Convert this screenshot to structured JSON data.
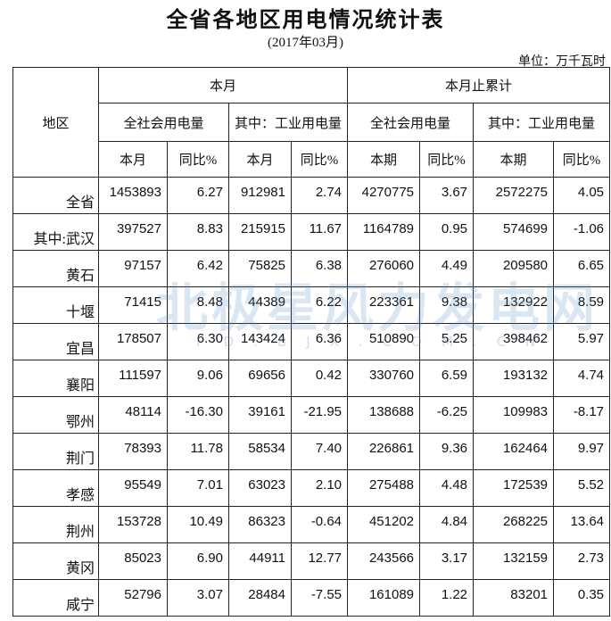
{
  "header": {
    "title": "全省各地区用电情况统计表",
    "subtitle": "(2017年03月)",
    "unit": "单位：万千瓦时"
  },
  "table": {
    "region_header": "地区",
    "groups": [
      "本月",
      "本月止累计"
    ],
    "subgroups": [
      "全社会用电量",
      "其中：工业用电量",
      "全社会用电量",
      "其中：工业用电量"
    ],
    "leaves": [
      "本月",
      "同比%",
      "本月",
      "同比%",
      "本期",
      "同比%",
      "本期",
      "同比%"
    ],
    "rows": [
      [
        "全省",
        "1453893",
        "6.27",
        "912981",
        "2.74",
        "4270775",
        "3.67",
        "2572275",
        "4.05"
      ],
      [
        "其中:武汉",
        "397527",
        "8.83",
        "215915",
        "11.67",
        "1164789",
        "0.95",
        "574699",
        "-1.06"
      ],
      [
        "黄石",
        "97157",
        "6.42",
        "75825",
        "6.38",
        "276060",
        "4.49",
        "209580",
        "6.65"
      ],
      [
        "十堰",
        "71415",
        "8.48",
        "44389",
        "6.22",
        "223361",
        "9.38",
        "132922",
        "8.59"
      ],
      [
        "宜昌",
        "178507",
        "6.30",
        "143424",
        "6.36",
        "510890",
        "5.25",
        "398462",
        "5.97"
      ],
      [
        "襄阳",
        "111597",
        "9.06",
        "69656",
        "0.42",
        "330760",
        "6.59",
        "193132",
        "4.74"
      ],
      [
        "鄂州",
        "48114",
        "-16.30",
        "39161",
        "-21.95",
        "138688",
        "-6.25",
        "109983",
        "-8.17"
      ],
      [
        "荆门",
        "78393",
        "11.78",
        "58534",
        "7.40",
        "226861",
        "9.36",
        "162464",
        "9.97"
      ],
      [
        "孝感",
        "95549",
        "7.01",
        "63023",
        "2.10",
        "275488",
        "4.48",
        "172539",
        "5.52"
      ],
      [
        "荆州",
        "153728",
        "10.49",
        "86323",
        "-0.64",
        "451202",
        "4.84",
        "268225",
        "13.64"
      ],
      [
        "黄冈",
        "85023",
        "6.90",
        "44911",
        "12.77",
        "243566",
        "3.17",
        "132159",
        "2.73"
      ],
      [
        "咸宁",
        "52796",
        "3.07",
        "28484",
        "-7.55",
        "161089",
        "1.22",
        "83201",
        "0.35"
      ]
    ]
  },
  "watermark": {
    "text": "北极星风力发电网",
    "url": "FD.BJX.COM.CN"
  }
}
